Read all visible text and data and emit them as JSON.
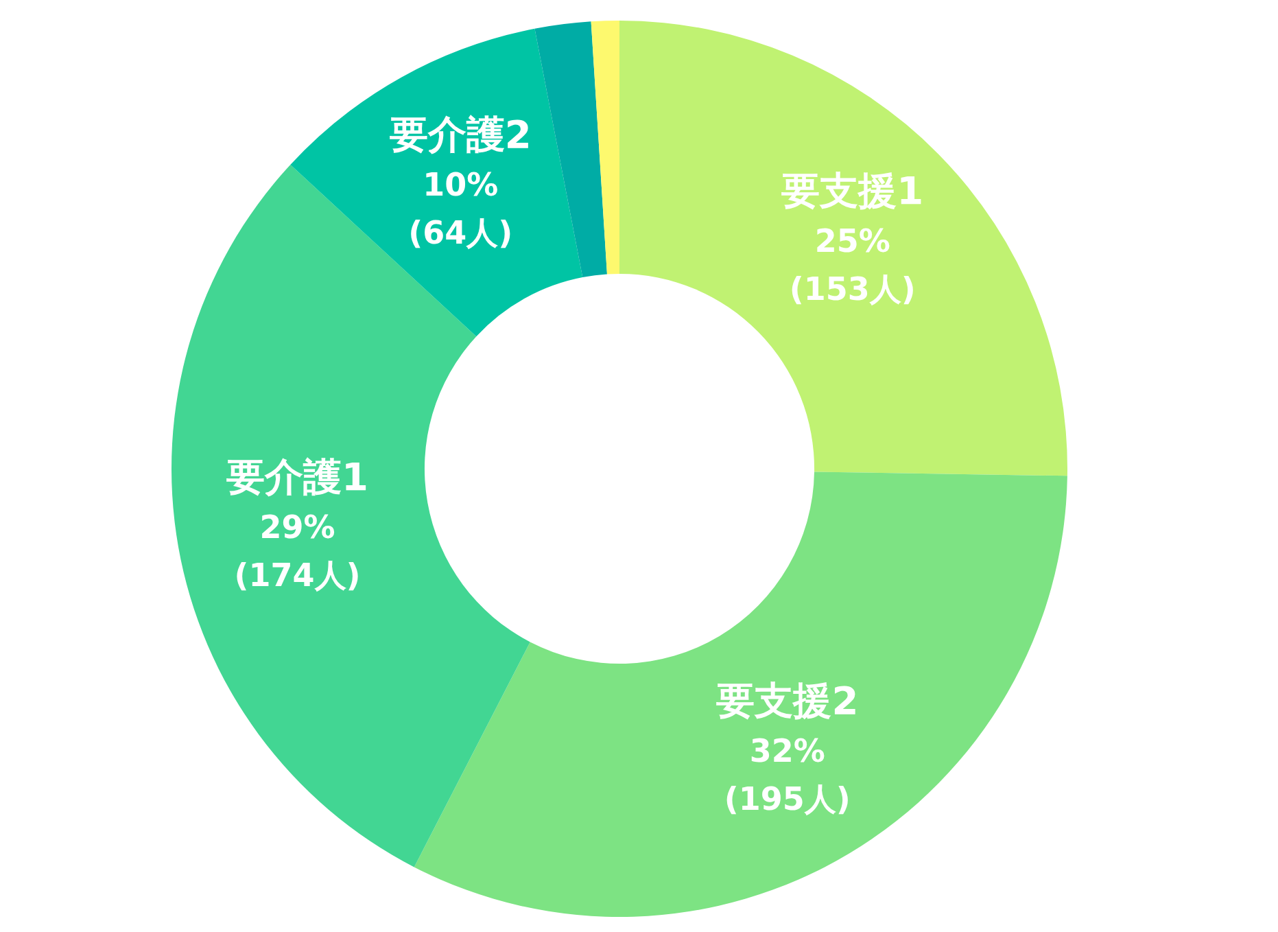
{
  "chart_data": {
    "type": "donut",
    "categories": [
      "要支援1",
      "要支援2",
      "要介護1",
      "要介護2",
      null,
      null
    ],
    "values": [
      25,
      32,
      29,
      10,
      2,
      1
    ],
    "colors": [
      "#c0f272",
      "#7de383",
      "#42d693",
      "#00c4a4",
      "#00aca5",
      "#fdf96e"
    ],
    "value_labels": [
      "25%\n(153人)",
      "32%\n(195人)",
      "29%\n(174人)",
      "10%\n(64人)",
      null,
      null
    ]
  }
}
